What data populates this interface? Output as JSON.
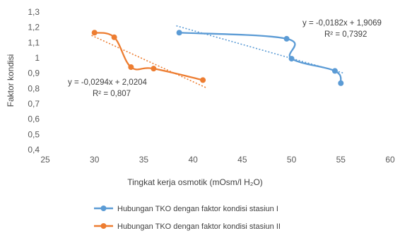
{
  "chart_data": {
    "type": "line",
    "xlabel": "Tingkat kerja osmotik (mOsm/l H₂O)",
    "ylabel": "Faktor kondisi",
    "xlim": [
      25,
      60
    ],
    "ylim": [
      0.4,
      1.3
    ],
    "xticks": [
      "25",
      "30",
      "35",
      "40",
      "45",
      "50",
      "55",
      "60"
    ],
    "yticks": [
      "0,4",
      "0,5",
      "0,6",
      "0,7",
      "0,8",
      "0,9",
      "1",
      "1,1",
      "1,2",
      "1,3"
    ],
    "grid": false,
    "legend_position": "bottom",
    "series": [
      {
        "name": "Hubungan TKO dengan faktor kondisi stasiun I",
        "color": "#5B9BD5",
        "x": [
          38.6,
          49.5,
          50.0,
          54.4,
          55.0
        ],
        "y": [
          1.165,
          1.125,
          0.995,
          0.915,
          0.835
        ],
        "trendline": {
          "slope": -0.0182,
          "intercept": 1.9069,
          "x_range": [
            38.6,
            55.0
          ]
        },
        "equation": "y = -0,0182x + 1,9069",
        "r2": "R² = 0,7392"
      },
      {
        "name": "Hubungan TKO dengan faktor kondisi stasiun II",
        "color": "#ED7D31",
        "x": [
          30.0,
          32.0,
          33.7,
          36.0,
          41.0
        ],
        "y": [
          1.165,
          1.135,
          0.94,
          0.93,
          0.855
        ],
        "trendline": {
          "slope": -0.0294,
          "intercept": 2.0204,
          "x_range": [
            30.0,
            41.0
          ]
        },
        "equation": "y = -0,0294x + 2,0204",
        "r2": "R² = 0,807"
      }
    ]
  }
}
